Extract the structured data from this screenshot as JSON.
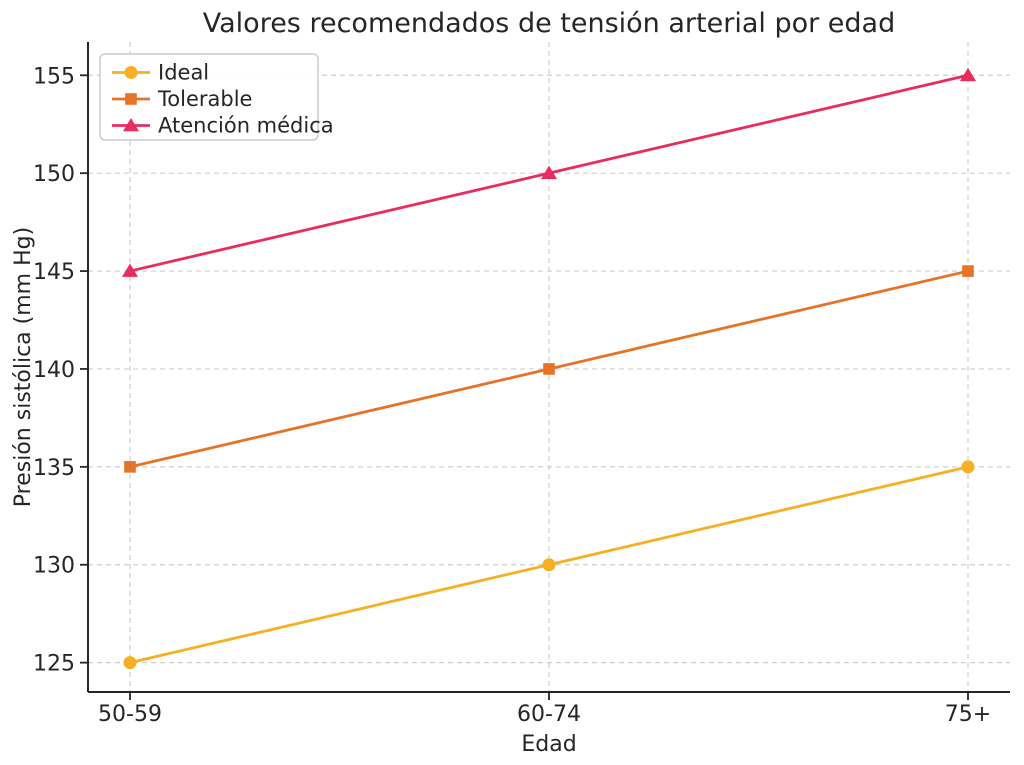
{
  "chart_data": {
    "type": "line",
    "title": "Valores recomendados de tensión arterial por edad",
    "xlabel": "Edad",
    "ylabel": "Presión sistólica (mm Hg)",
    "categories": [
      "50-59",
      "60-74",
      "75+"
    ],
    "series": [
      {
        "name": "Ideal",
        "marker": "circle",
        "color": "#F5B023",
        "values": [
          125,
          130,
          135
        ]
      },
      {
        "name": "Tolerable",
        "marker": "square",
        "color": "#E67428",
        "values": [
          135,
          140,
          145
        ]
      },
      {
        "name": "Atención médica",
        "marker": "triangle",
        "color": "#E82D5E",
        "values": [
          145,
          150,
          155
        ]
      }
    ],
    "yticks": [
      125,
      130,
      135,
      140,
      145,
      150,
      155
    ],
    "ylim": [
      123.5,
      156.7
    ],
    "grid": true,
    "grid_style": "dashed",
    "legend_position": "upper-left",
    "colors": {
      "text": "#262626",
      "spine": "#262626",
      "grid": "#cfcfcf",
      "background": "#ffffff"
    }
  }
}
